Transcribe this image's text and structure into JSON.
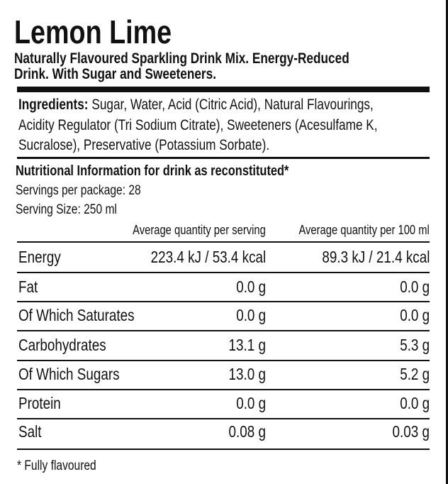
{
  "title": "Lemon Lime",
  "subtitle_lines": [
    "Naturally Flavoured Sparkling Drink Mix. Energy-Reduced",
    "Drink. With Sugar and Sweeteners."
  ],
  "ingredients": {
    "label": "Ingredients:",
    "lines": [
      " Sugar, Water, Acid (Citric Acid), Natural Flavourings,",
      "Acidity Regulator (Tri Sodium Citrate), Sweeteners (Acesulfame K,",
      "Sucralose), Preservative (Potassium Sorbate)."
    ]
  },
  "nutrition": {
    "heading": "Nutritional Information for drink as reconstituted*",
    "servings": "Servings per package: 28",
    "serving_size": "Serving Size: 250 ml",
    "columns": [
      "Average quantity per serving",
      "Average quantity per 100 ml"
    ],
    "rows": [
      {
        "name": "Energy",
        "per_serving": "223.4 kJ / 53.4 kcal",
        "per_100ml": "89.3 kJ / 21.4 kcal"
      },
      {
        "name": "Fat",
        "per_serving": "0.0 g",
        "per_100ml": "0.0 g"
      },
      {
        "name": "Of Which Saturates",
        "per_serving": "0.0 g",
        "per_100ml": "0.0 g"
      },
      {
        "name": "Carbohydrates",
        "per_serving": "13.1 g",
        "per_100ml": "5.3 g"
      },
      {
        "name": "Of Which Sugars",
        "per_serving": "13.0 g",
        "per_100ml": "5.2 g"
      },
      {
        "name": "Protein",
        "per_serving": "0.0 g",
        "per_100ml": "0.0 g"
      },
      {
        "name": "Salt",
        "per_serving": "0.08 g",
        "per_100ml": "0.03 g"
      }
    ],
    "footnote": "* Fully flavoured"
  }
}
